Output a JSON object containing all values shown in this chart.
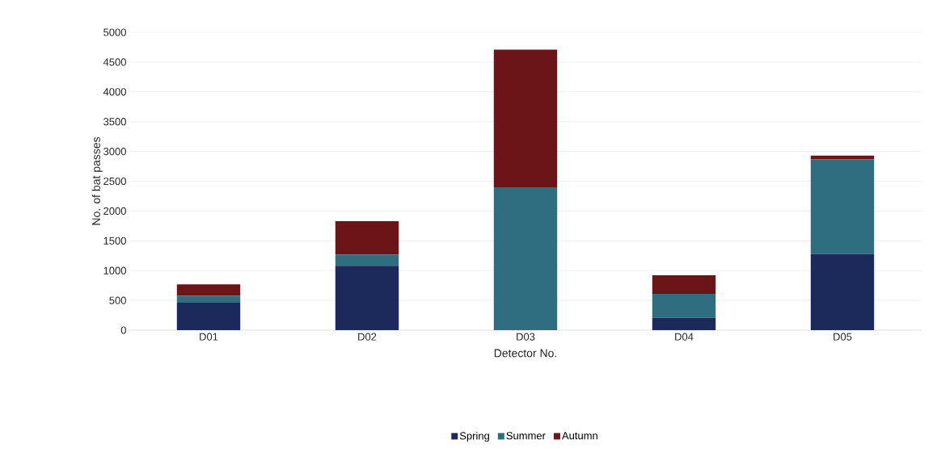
{
  "chart_data": {
    "type": "bar",
    "stacked": true,
    "xlabel": "Detector No.",
    "ylabel": "No. of bat passes",
    "categories": [
      "D01",
      "D02",
      "D03",
      "D04",
      "D05"
    ],
    "series": [
      {
        "name": "Spring",
        "color": "#1b2a5a",
        "values": [
          460,
          1080,
          0,
          210,
          1280
        ]
      },
      {
        "name": "Summer",
        "color": "#2e6e80",
        "values": [
          120,
          190,
          2400,
          400,
          1590
        ]
      },
      {
        "name": "Autumn",
        "color": "#6b1518",
        "values": [
          190,
          560,
          2310,
          310,
          60
        ]
      }
    ],
    "ylim": [
      0,
      5000
    ],
    "yticks": [
      0,
      500,
      1000,
      1500,
      2000,
      2500,
      3000,
      3500,
      4000,
      4500,
      5000
    ],
    "grid": "y",
    "legend": "bottom"
  }
}
